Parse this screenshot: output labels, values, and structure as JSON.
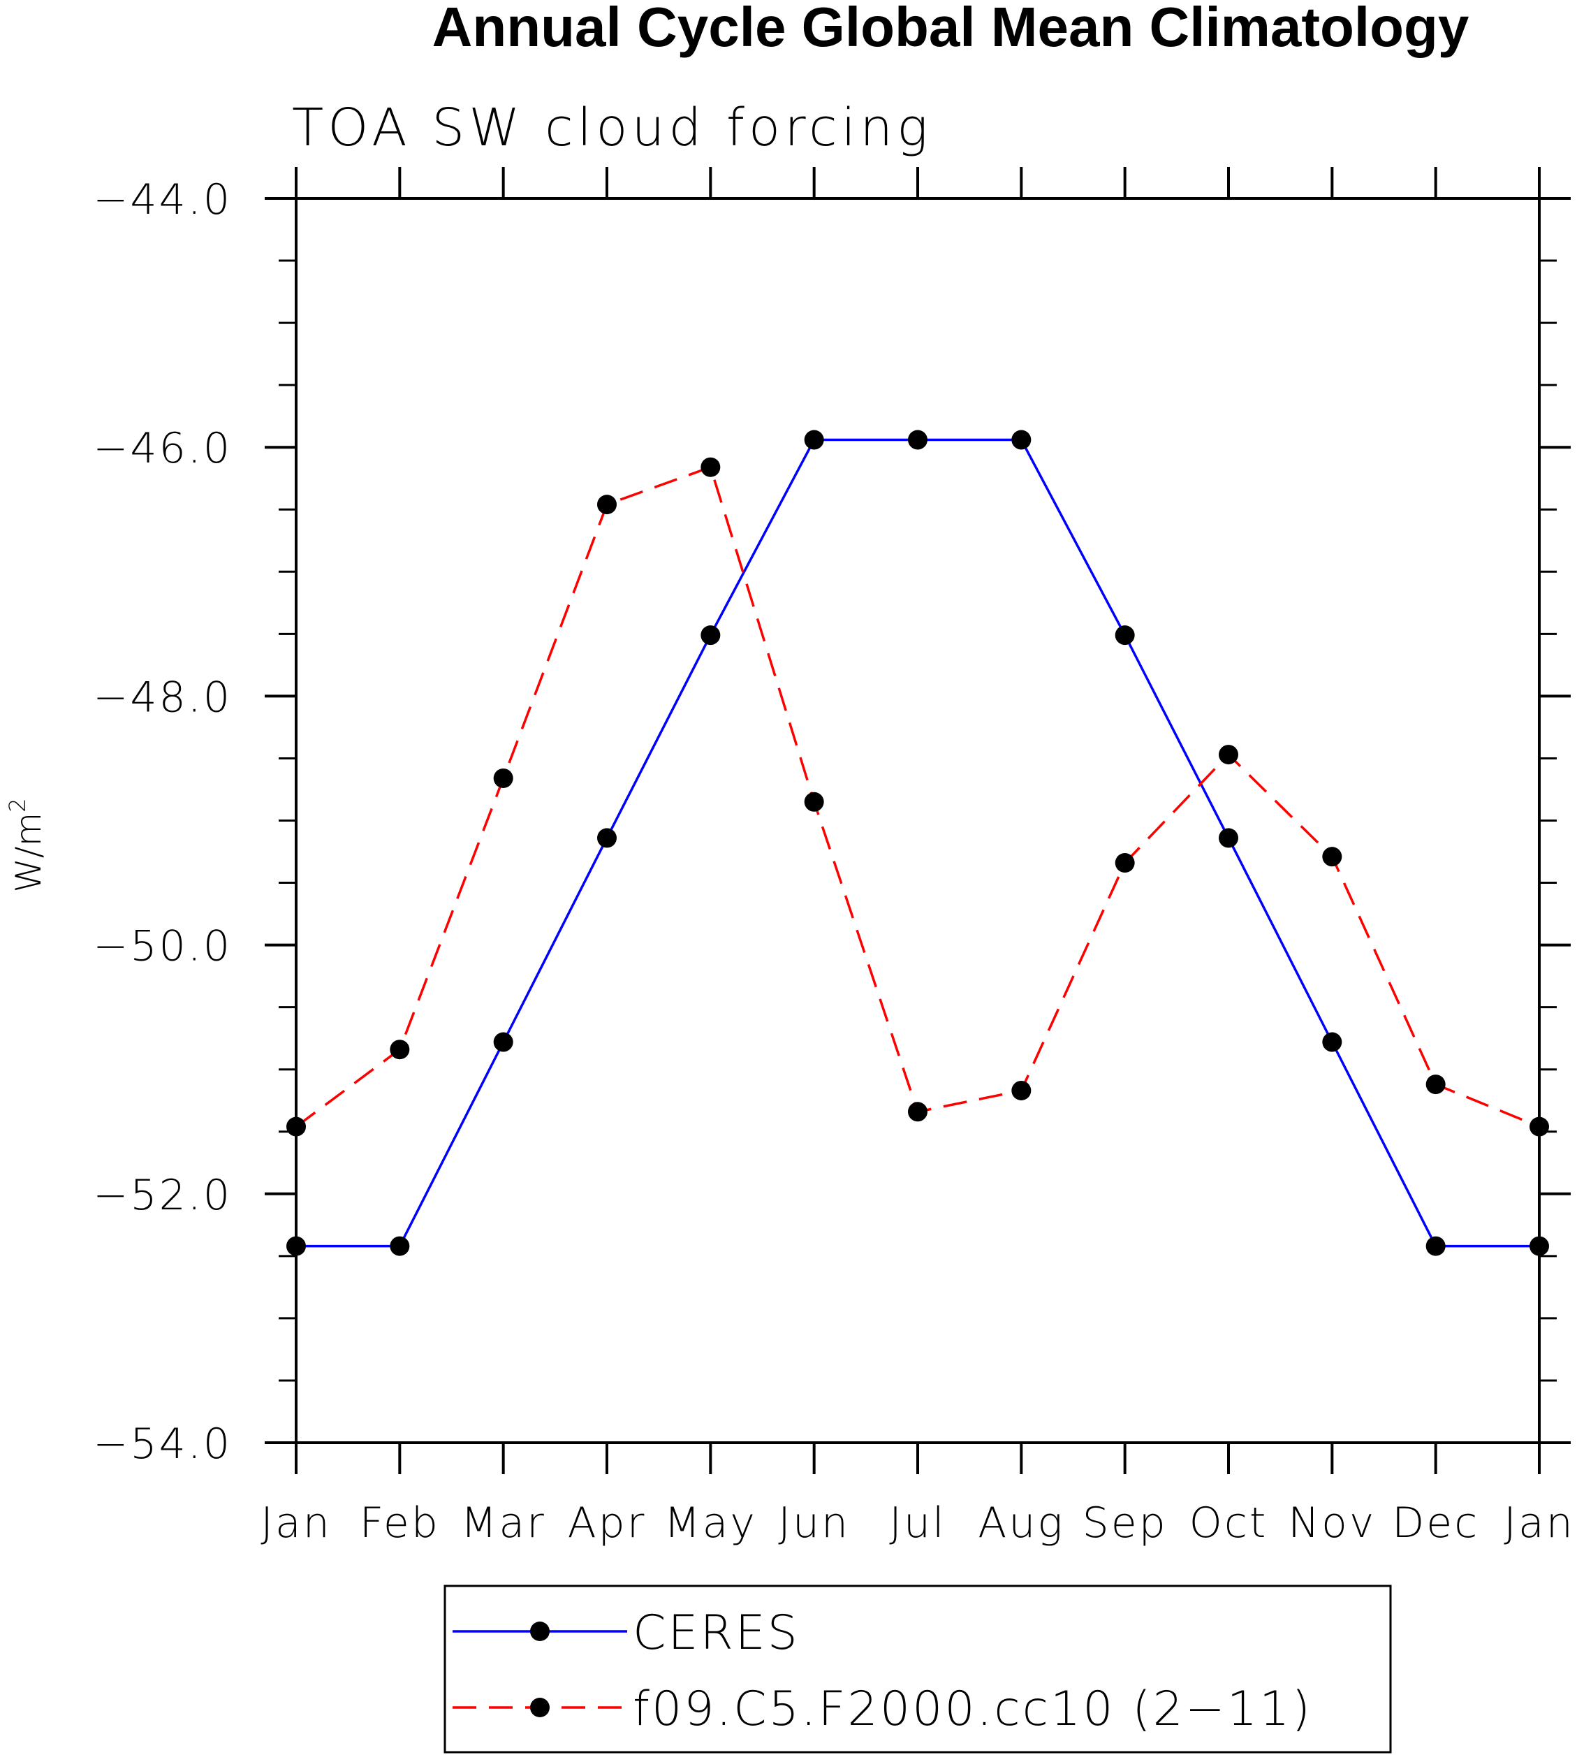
{
  "chart_data": {
    "type": "line",
    "title": "Annual Cycle Global Mean Climatology",
    "subtitle": "TOA SW cloud forcing",
    "ylabel": "W/m",
    "ylabel_superscript": "2",
    "ylim": [
      -54.0,
      -44.0
    ],
    "yticks": [
      -44.0,
      -46.0,
      -48.0,
      -50.0,
      -52.0,
      -54.0
    ],
    "ytick_labels": [
      "−44.0",
      "−46.0",
      "−48.0",
      "−50.0",
      "−52.0",
      "−54.0"
    ],
    "categories": [
      "Jan",
      "Feb",
      "Mar",
      "Apr",
      "May",
      "Jun",
      "Jul",
      "Aug",
      "Sep",
      "Oct",
      "Nov",
      "Dec",
      "Jan"
    ],
    "grid": false,
    "legend_position": "bottom",
    "series": [
      {
        "name": "CERES",
        "color": "#0000ff",
        "dash": "solid",
        "marker": "filled-circle",
        "values": [
          -52.42,
          -52.42,
          -50.78,
          -49.14,
          -47.51,
          -45.94,
          -45.94,
          -45.94,
          -47.51,
          -49.14,
          -50.78,
          -52.42,
          -52.42
        ]
      },
      {
        "name": "f09.C5.F2000.cc10 (2−11)",
        "color": "#ff0000",
        "dash": "dashed",
        "marker": "filled-circle",
        "values": [
          -51.46,
          -50.84,
          -48.66,
          -46.46,
          -46.16,
          -48.85,
          -51.34,
          -51.17,
          -49.34,
          -48.47,
          -49.29,
          -51.12,
          -51.46
        ]
      }
    ]
  }
}
